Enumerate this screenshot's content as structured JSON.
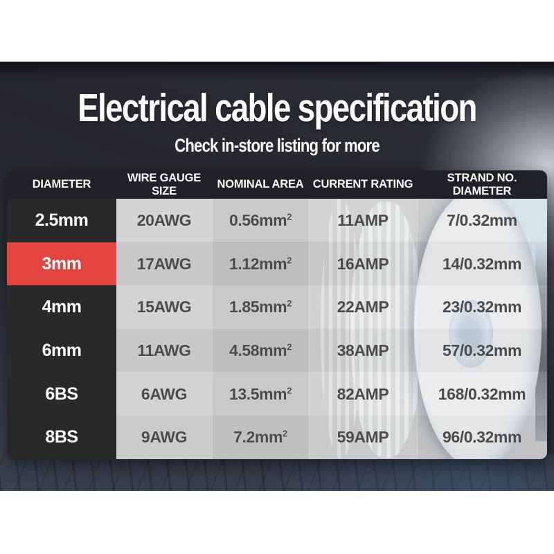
{
  "page": {
    "title": "Electrical cable specification",
    "subtitle": "Check in-store listing for more"
  },
  "table": {
    "headers": [
      "DIAMETER",
      "WIRE GAUGE SIZE",
      "NOMINAL AREA",
      "CURRENT RATING",
      "STRAND NO. DIAMETER"
    ],
    "rows": [
      {
        "diameter": "2.5mm",
        "gauge": "20AWG",
        "area": "0.56mm",
        "area_sup": "2",
        "current": "11AMP",
        "strand": "7/0.32mm"
      },
      {
        "diameter": "3mm",
        "gauge": "17AWG",
        "area": "1.12mm",
        "area_sup": "2",
        "current": "16AMP",
        "strand": "14/0.32mm"
      },
      {
        "diameter": "4mm",
        "gauge": "15AWG",
        "area": "1.85mm",
        "area_sup": "2",
        "current": "22AMP",
        "strand": "23/0.32mm"
      },
      {
        "diameter": "6mm",
        "gauge": "11AWG",
        "area": "4.58mm",
        "area_sup": "2",
        "current": "38AMP",
        "strand": "57/0.32mm"
      },
      {
        "diameter": "6BS",
        "gauge": "6AWG",
        "area": "13.5mm",
        "area_sup": "2",
        "current": "82AMP",
        "strand": "168/0.32mm"
      },
      {
        "diameter": "8BS",
        "gauge": "9AWG",
        "area": "7.2mm",
        "area_sup": "2",
        "current": "59AMP",
        "strand": "96/0.32mm"
      }
    ],
    "highlight_row": "3mm",
    "highlight_color": "#e2453f"
  },
  "colors": {
    "accent_red": "#e2453f",
    "header_bg": "#202125",
    "diameter_cell_bg": "#29292c",
    "value_text": "#4a4b4d",
    "backdrop_dark": "#26272e"
  },
  "chart_data": {
    "type": "table",
    "title": "Electrical cable specification",
    "columns": [
      "DIAMETER",
      "WIRE GAUGE SIZE",
      "NOMINAL AREA",
      "CURRENT RATING",
      "STRAND NO. DIAMETER"
    ],
    "rows": [
      [
        "2.5mm",
        "20AWG",
        "0.56mm2",
        "11AMP",
        "7/0.32mm"
      ],
      [
        "3mm",
        "17AWG",
        "1.12mm2",
        "16AMP",
        "14/0.32mm"
      ],
      [
        "4mm",
        "15AWG",
        "1.85mm2",
        "22AMP",
        "23/0.32mm"
      ],
      [
        "6mm",
        "11AWG",
        "4.58mm2",
        "38AMP",
        "57/0.32mm"
      ],
      [
        "6BS",
        "6AWG",
        "13.5mm2",
        "82AMP",
        "168/0.32mm"
      ],
      [
        "8BS",
        "9AWG",
        "7.2mm2",
        "59AMP",
        "96/0.32mm"
      ]
    ]
  }
}
